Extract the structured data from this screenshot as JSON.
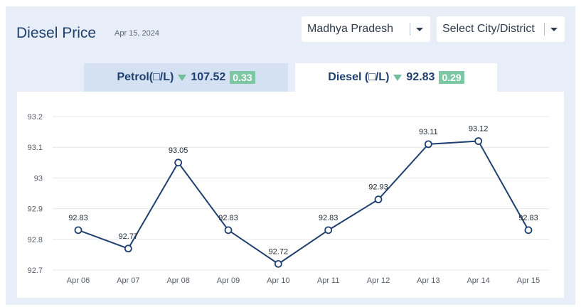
{
  "header": {
    "title": "Diesel Price",
    "date": "Apr 15, 2024"
  },
  "filters": {
    "state": "Madhya Pradesh",
    "city": "Select City/District"
  },
  "tabs": [
    {
      "name": "Petrol(□/L)",
      "price": "107.52",
      "change": "0.33",
      "direction": "down",
      "active": false
    },
    {
      "name": "Diesel (□/L)",
      "price": "92.83",
      "change": "0.29",
      "direction": "down",
      "active": true
    }
  ],
  "colors": {
    "line": "#1f3f6e",
    "accent_badge": "#7cc8a2",
    "arrow": "#6fbf9a",
    "title": "#1f3f6e"
  },
  "chart_data": {
    "type": "line",
    "categories": [
      "Apr 06",
      "Apr 07",
      "Apr 08",
      "Apr 09",
      "Apr 10",
      "Apr 11",
      "Apr 12",
      "Apr 13",
      "Apr 14",
      "Apr 15"
    ],
    "series": [
      {
        "values": [
          92.83,
          92.77,
          93.05,
          92.83,
          92.72,
          92.83,
          92.93,
          93.11,
          93.12,
          92.83
        ]
      }
    ],
    "y_ticks": [
      "92.7",
      "92.8",
      "92.9",
      "93",
      "93.1",
      "93.2"
    ],
    "data_labels": [
      "92.83",
      "92.77",
      "93.05",
      "92.83",
      "92.72",
      "92.83",
      "92.93",
      "93.11",
      "93.12",
      "92.83"
    ],
    "ylim": [
      92.7,
      93.2
    ],
    "grid": true,
    "legend": "none"
  }
}
